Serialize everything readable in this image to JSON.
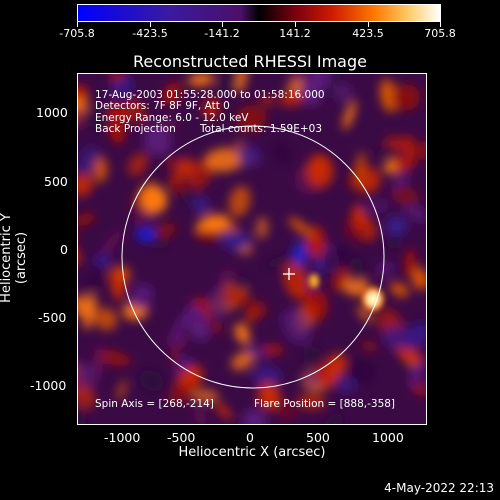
{
  "colorbar": {
    "labels": [
      "-705.8",
      "-423.5",
      "-141.2",
      "141.2",
      "423.5",
      "705.8"
    ],
    "min": -705.8,
    "max": 705.8
  },
  "title": "Reconstructed RHESSI Image",
  "info": {
    "line1": "17-Aug-2003 01:55:28.000 to 01:58:16.000",
    "line2": "Detectors: 7F 8F 9F, Att 0",
    "line3": "Energy Range: 6.0 - 12.0 keV",
    "line4a": "Back Projection",
    "line4b": "Total counts: 1.59E+03",
    "spin_axis": "Spin Axis = [268,-214]",
    "flare_position": "Flare Position = [888,-358]"
  },
  "axes": {
    "xlabel": "Heliocentric X (arcsec)",
    "ylabel": "Heliocentric Y (arcsec)",
    "xticks": [
      "-1000",
      "-500",
      "0",
      "500",
      "1000"
    ],
    "yticks": [
      "1000",
      "500",
      "0",
      "-500",
      "-1000"
    ]
  },
  "datestamp": "4-May-2022 22:13",
  "colors": {
    "background": "#000000",
    "foreground": "#ffffff"
  }
}
